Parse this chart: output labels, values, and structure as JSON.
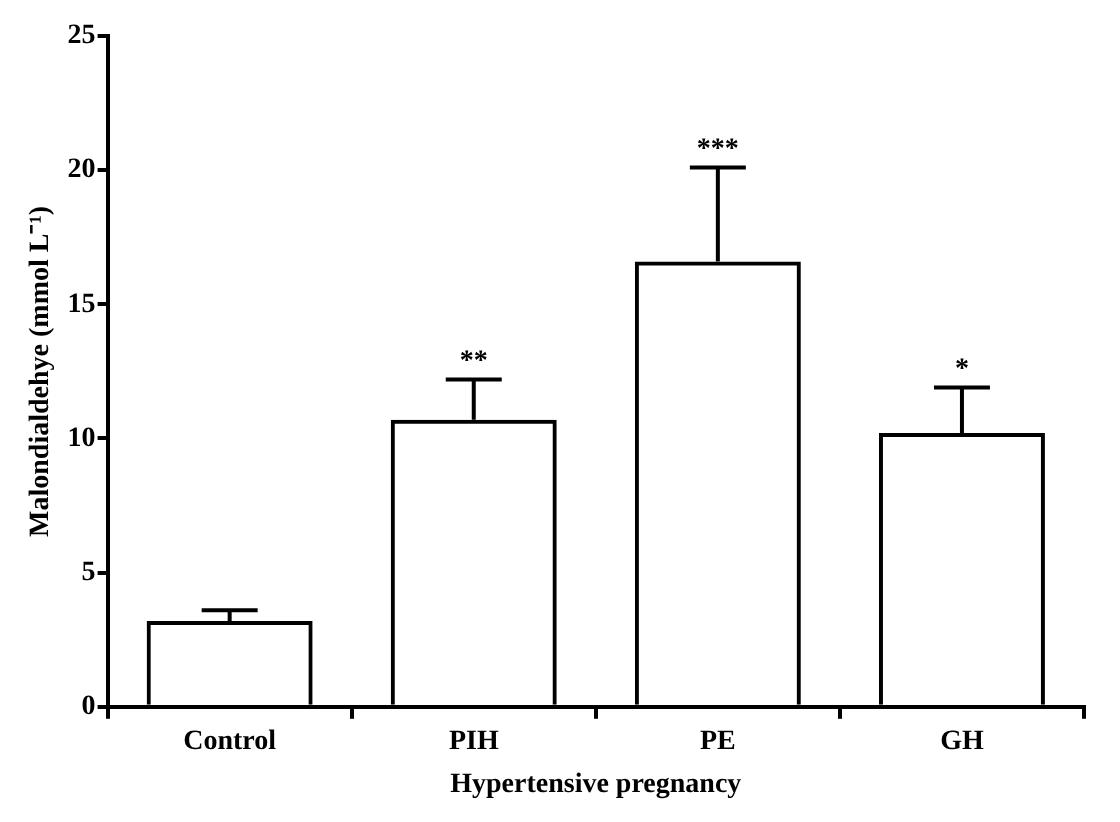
{
  "chart_data": {
    "type": "bar",
    "xlabel": "Hypertensive pregnancy",
    "ylabel": "Malondialdehye (mmol L⁻¹)",
    "categories": [
      "Control",
      "PIH",
      "PE",
      "GH"
    ],
    "values": [
      3.2,
      10.7,
      16.6,
      10.2
    ],
    "errors": [
      [
        3.2,
        3.6
      ],
      [
        10.7,
        12.2
      ],
      [
        16.6,
        20.1
      ],
      [
        10.2,
        11.9
      ]
    ],
    "color": "#000000",
    "ylim": [
      0,
      25
    ],
    "yticks": [
      0,
      5,
      10,
      15,
      20,
      25
    ],
    "annotations": [
      {
        "text": "**",
        "x": "PIH",
        "y": 12.2
      },
      {
        "text": "***",
        "x": "PE",
        "y": 20.1
      },
      {
        "text": "*",
        "x": "GH",
        "y": 11.9
      }
    ]
  }
}
